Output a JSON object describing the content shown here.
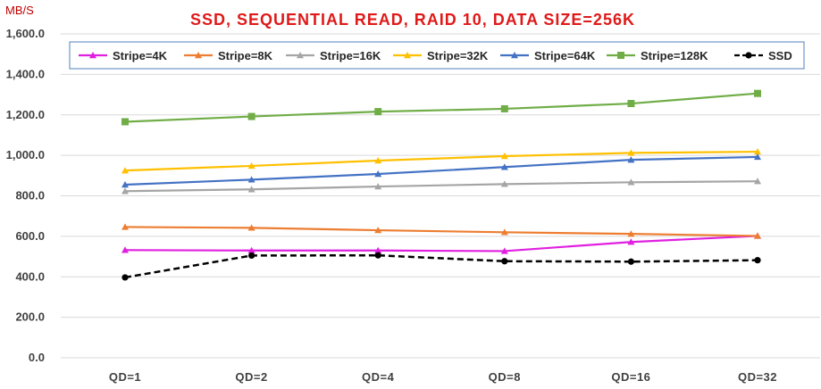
{
  "chart_data": {
    "type": "line",
    "title": "SSD, SEQUENTIAL READ, RAID 10, DATA SIZE=256K",
    "ylabel": "MB/S",
    "xlabel": "",
    "categories": [
      "QD=1",
      "QD=2",
      "QD=4",
      "QD=8",
      "QD=16",
      "QD=32"
    ],
    "ylim": [
      0,
      1600
    ],
    "yticks": [
      "0.0",
      "200.0",
      "400.0",
      "600.0",
      "800.0",
      "1,000.0",
      "1,200.0",
      "1,400.0",
      "1,600.0"
    ],
    "grid": true,
    "legend_position": "top",
    "series": [
      {
        "name": "Stripe=4K",
        "color": "#e020e0",
        "marker": "triangle",
        "dashed": false,
        "values": [
          532,
          530,
          530,
          527,
          572,
          602
        ]
      },
      {
        "name": "Stripe=8K",
        "color": "#ed7d31",
        "marker": "triangle",
        "dashed": false,
        "values": [
          646,
          642,
          630,
          620,
          612,
          602
        ]
      },
      {
        "name": "Stripe=16K",
        "color": "#a5a5a5",
        "marker": "triangle",
        "dashed": false,
        "values": [
          823,
          832,
          846,
          858,
          867,
          872
        ]
      },
      {
        "name": "Stripe=32K",
        "color": "#ffc000",
        "marker": "triangle",
        "dashed": false,
        "values": [
          925,
          948,
          974,
          996,
          1012,
          1018
        ]
      },
      {
        "name": "Stripe=64K",
        "color": "#4472c4",
        "marker": "triangle",
        "dashed": false,
        "values": [
          855,
          880,
          908,
          942,
          978,
          992
        ]
      },
      {
        "name": "Stripe=128K",
        "color": "#70ad47",
        "marker": "square",
        "dashed": false,
        "values": [
          1166,
          1192,
          1216,
          1230,
          1256,
          1306
        ]
      },
      {
        "name": "SSD",
        "color": "#000000",
        "marker": "circle",
        "dashed": true,
        "values": [
          397,
          505,
          506,
          477,
          475,
          482
        ]
      }
    ]
  }
}
